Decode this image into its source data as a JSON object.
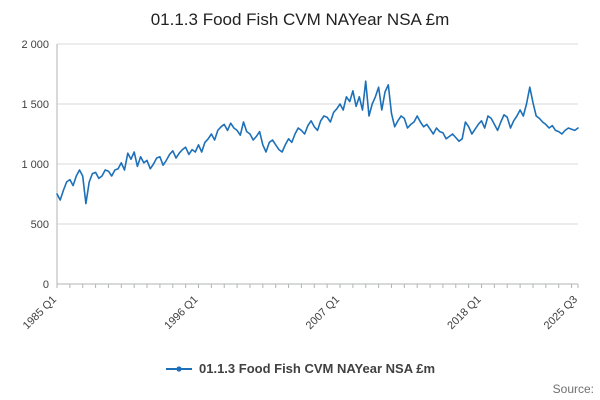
{
  "title": "01.1.3 Food Fish CVM NAYear NSA £m",
  "legend": {
    "label": "01.1.3 Food Fish CVM NAYear NSA £m"
  },
  "footer": {
    "source": "Source:"
  },
  "chart_data": {
    "type": "line",
    "title": "01.1.3 Food Fish CVM NAYear NSA £m",
    "series_name": "01.1.3 Food Fish CVM NAYear NSA £m",
    "frequency": "quarterly",
    "x_start": "1985 Q1",
    "x_end": "2025 Q3",
    "xlabel": "",
    "ylabel": "",
    "ylim": [
      0,
      2000
    ],
    "grid": true,
    "legend_position": "bottom",
    "line_color": "#1d70b8",
    "grid_color": "#d9d9d9",
    "axis_color": "#b1b4b6",
    "tick_text_color": "#414042",
    "yticks": [
      {
        "value": 0,
        "label": "0"
      },
      {
        "value": 500,
        "label": "500"
      },
      {
        "value": 1000,
        "label": "1 000"
      },
      {
        "value": 1500,
        "label": "1 500"
      },
      {
        "value": 2000,
        "label": "2 000"
      }
    ],
    "xticks": [
      {
        "index": 0,
        "label": "1985 Q1"
      },
      {
        "index": 44,
        "label": "1996 Q1"
      },
      {
        "index": 88,
        "label": "2007 Q1"
      },
      {
        "index": 132,
        "label": "2018 Q1"
      },
      {
        "index": 162,
        "label": "2025 Q3"
      }
    ],
    "values": [
      750,
      700,
      780,
      850,
      870,
      820,
      900,
      950,
      900,
      670,
      850,
      920,
      930,
      880,
      900,
      950,
      940,
      900,
      950,
      960,
      1010,
      950,
      1090,
      1040,
      1100,
      980,
      1060,
      1010,
      1030,
      960,
      1000,
      1050,
      1060,
      990,
      1030,
      1080,
      1110,
      1050,
      1090,
      1120,
      1140,
      1080,
      1120,
      1100,
      1160,
      1100,
      1180,
      1210,
      1250,
      1200,
      1280,
      1310,
      1330,
      1280,
      1340,
      1300,
      1280,
      1240,
      1350,
      1270,
      1250,
      1200,
      1230,
      1270,
      1160,
      1100,
      1180,
      1200,
      1160,
      1120,
      1100,
      1160,
      1210,
      1180,
      1250,
      1300,
      1280,
      1250,
      1320,
      1360,
      1310,
      1280,
      1360,
      1400,
      1390,
      1350,
      1430,
      1460,
      1500,
      1450,
      1560,
      1520,
      1610,
      1480,
      1560,
      1450,
      1690,
      1400,
      1500,
      1560,
      1640,
      1450,
      1600,
      1660,
      1420,
      1310,
      1360,
      1400,
      1380,
      1300,
      1330,
      1350,
      1400,
      1350,
      1310,
      1330,
      1290,
      1250,
      1300,
      1270,
      1260,
      1210,
      1230,
      1250,
      1220,
      1190,
      1210,
      1350,
      1310,
      1250,
      1290,
      1330,
      1360,
      1300,
      1400,
      1380,
      1330,
      1280,
      1350,
      1410,
      1390,
      1300,
      1360,
      1400,
      1450,
      1400,
      1500,
      1640,
      1510,
      1400,
      1380,
      1350,
      1330,
      1300,
      1320,
      1280,
      1270,
      1250,
      1280,
      1300,
      1290,
      1280,
      1300
    ]
  }
}
